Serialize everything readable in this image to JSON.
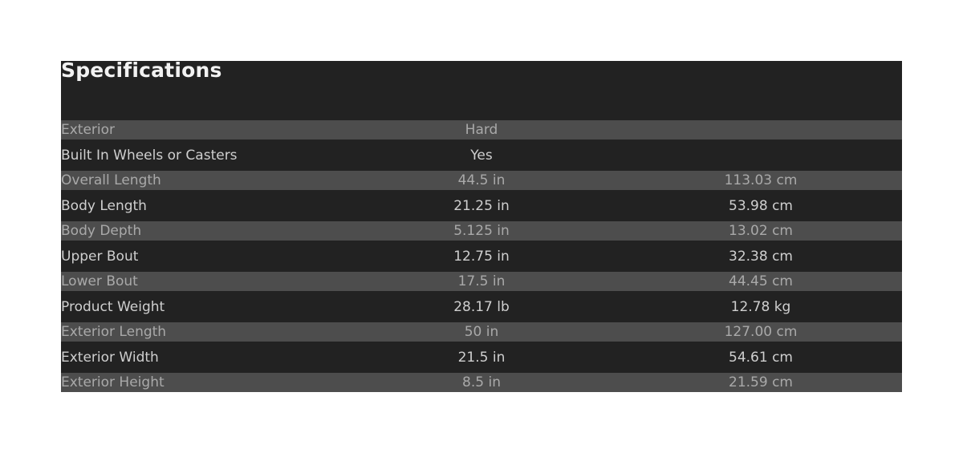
{
  "title": "Specifications",
  "colors": {
    "background": "#222222",
    "stripe": "#4d4d4d"
  },
  "rows": [
    {
      "label": "Exterior",
      "value": "Hard",
      "metric": ""
    },
    {
      "label": "Built In Wheels or Casters",
      "value": "Yes",
      "metric": ""
    },
    {
      "label": "Overall Length",
      "value": "44.5 in",
      "metric": "113.03 cm"
    },
    {
      "label": "Body Length",
      "value": "21.25 in",
      "metric": "53.98 cm"
    },
    {
      "label": "Body Depth",
      "value": "5.125 in",
      "metric": "13.02 cm"
    },
    {
      "label": "Upper Bout",
      "value": "12.75 in",
      "metric": "32.38 cm"
    },
    {
      "label": "Lower Bout",
      "value": "17.5 in",
      "metric": "44.45 cm"
    },
    {
      "label": "Product Weight",
      "value": "28.17 lb",
      "metric": "12.78 kg"
    },
    {
      "label": "Exterior Length",
      "value": "50 in",
      "metric": "127.00 cm"
    },
    {
      "label": "Exterior Width",
      "value": "21.5 in",
      "metric": "54.61 cm"
    },
    {
      "label": "Exterior Height",
      "value": "8.5 in",
      "metric": "21.59 cm"
    }
  ]
}
